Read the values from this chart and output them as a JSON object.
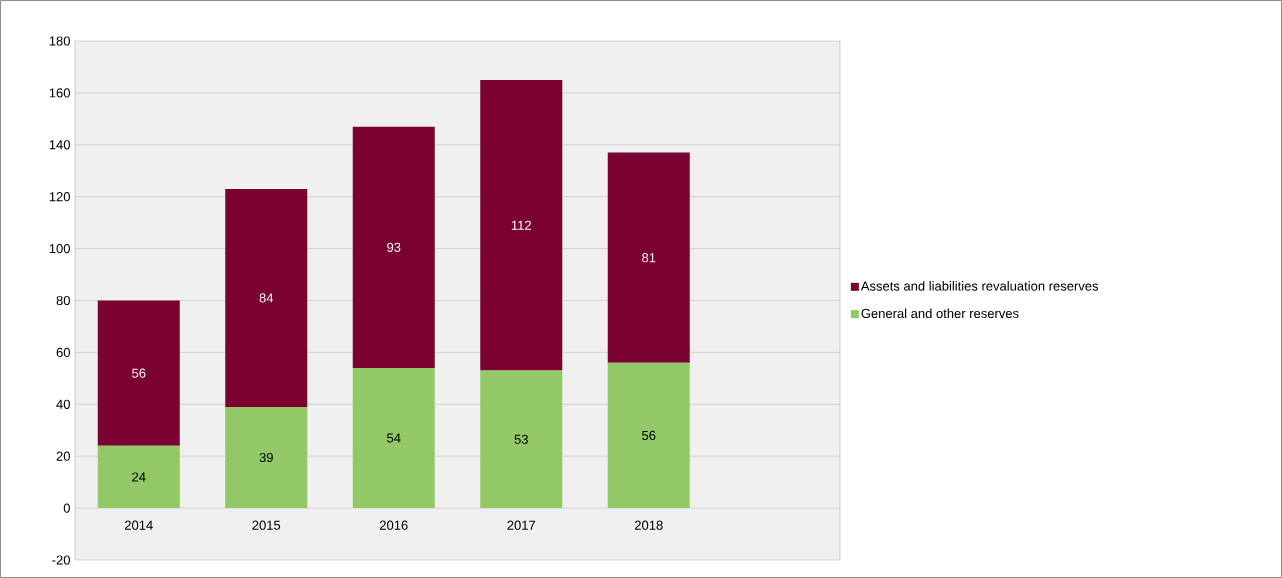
{
  "chart_data": {
    "type": "bar",
    "stacked": true,
    "categories": [
      "2014",
      "2015",
      "2016",
      "2017",
      "2018"
    ],
    "series": [
      {
        "name": "General and other reserves",
        "color": "#92c865",
        "values": [
          24,
          39,
          54,
          53,
          56
        ]
      },
      {
        "name": "Assets and liabilities revaluation reserves",
        "color": "#7b0230",
        "values": [
          56,
          84,
          93,
          112,
          81
        ]
      }
    ],
    "ylim": [
      -20,
      180
    ],
    "yticks": [
      -20,
      0,
      20,
      40,
      60,
      80,
      100,
      120,
      140,
      160,
      180
    ],
    "grid": "y",
    "legend": "right",
    "data_labels": true
  }
}
